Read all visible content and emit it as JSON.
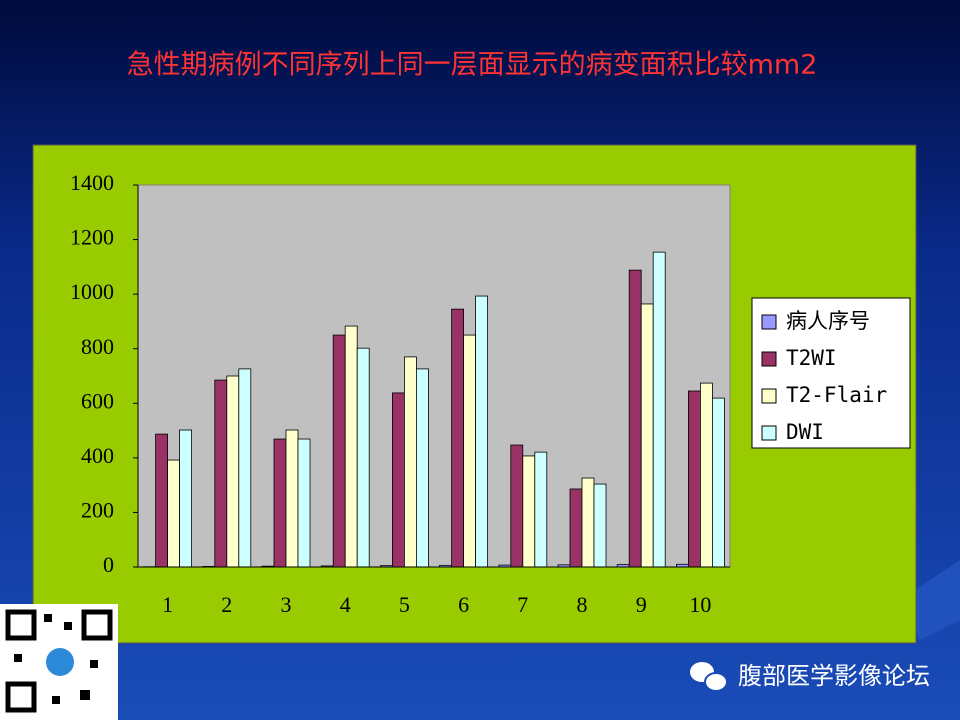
{
  "chart_data": {
    "type": "bar",
    "title": "急性期病例不同序列上同一层面显示的病变面积比较mm2",
    "categories": [
      "1",
      "2",
      "3",
      "4",
      "5",
      "6",
      "7",
      "8",
      "9",
      "10"
    ],
    "series": [
      {
        "name": "病人序号",
        "color": "#9999ff",
        "values": [
          1,
          2,
          3,
          4,
          5,
          6,
          7,
          8,
          9,
          10
        ]
      },
      {
        "name": "T2WI",
        "color": "#993366",
        "values": [
          487,
          685,
          469,
          850,
          638,
          945,
          447,
          286,
          1088,
          645
        ]
      },
      {
        "name": "T2-Flair",
        "color": "#ffffcc",
        "values": [
          392,
          700,
          502,
          883,
          770,
          850,
          407,
          326,
          964,
          674
        ]
      },
      {
        "name": "DWI",
        "color": "#ccffff",
        "values": [
          502,
          726,
          469,
          802,
          726,
          993,
          421,
          304,
          1154,
          619
        ]
      }
    ],
    "ylim": [
      0,
      1400
    ],
    "yticks": [
      0,
      200,
      400,
      600,
      800,
      1000,
      1200,
      1400
    ],
    "legend": "right"
  },
  "watermark": "腹部医学影像论坛"
}
